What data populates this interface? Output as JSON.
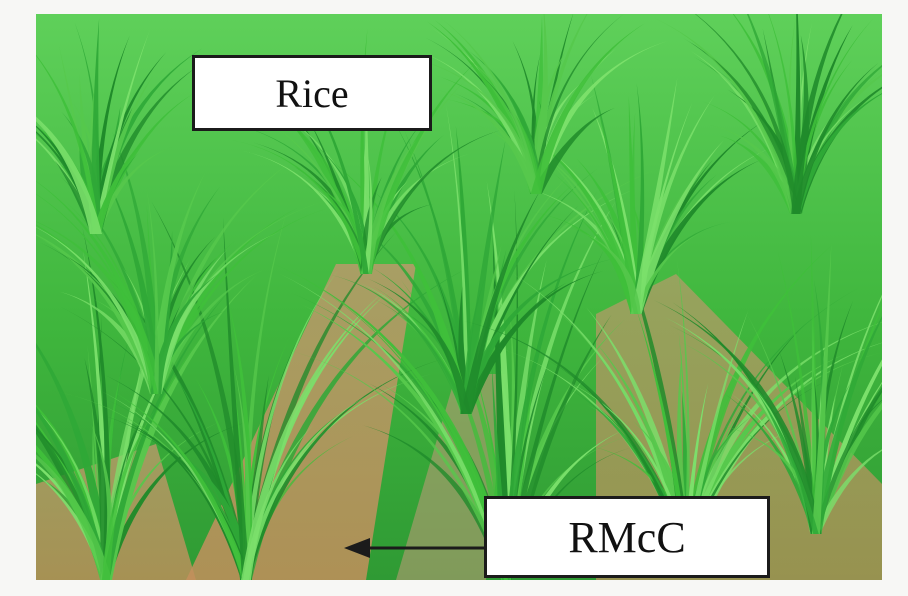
{
  "labels": {
    "rice": "Rice",
    "rmcc": "RMcC"
  },
  "colors": {
    "grass_light": "#7be06b",
    "grass_mid": "#3fbf3a",
    "grass_dark": "#1f8a2a",
    "soil": "#c79a6a",
    "label_bg": "#ffffff",
    "label_border": "#1b1b1b",
    "arrow": "#1b1b1b"
  }
}
